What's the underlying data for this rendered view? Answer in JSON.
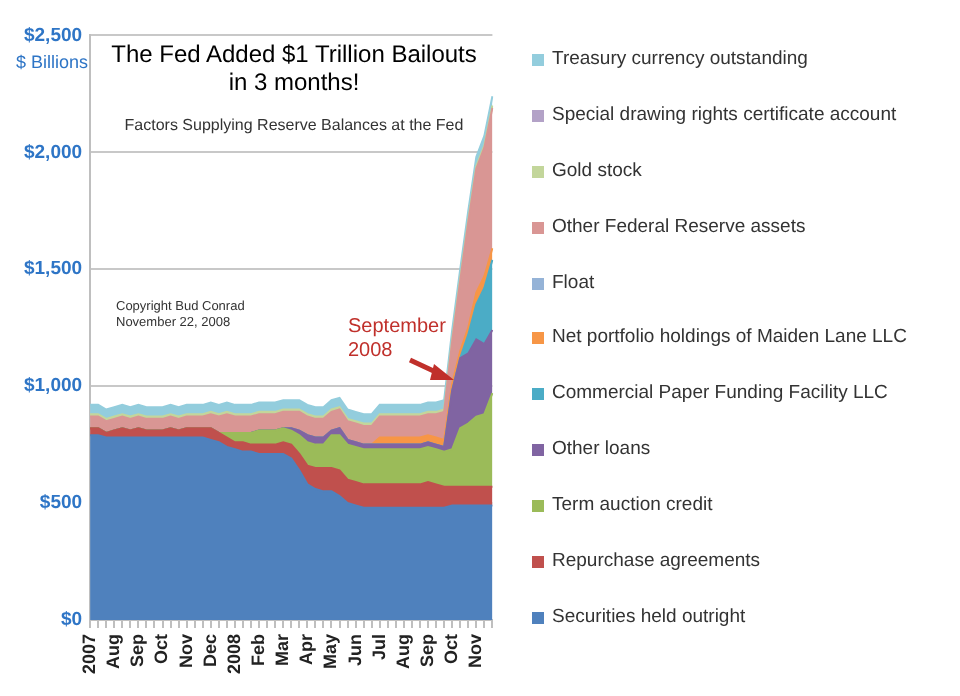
{
  "chart_data": {
    "type": "area",
    "stacked": true,
    "title": "The Fed Added $1 Trillion Bailouts in 3 months!",
    "subtitle": "Factors Supplying Reserve Balances at the Fed",
    "ylabel": "$ Billions",
    "annotations": [
      "Copyright Bud Conrad\nNovember 22, 2008",
      "September 2008"
    ],
    "categories": [
      "2007",
      null,
      null,
      "Aug",
      null,
      null,
      "Sep",
      null,
      null,
      "Oct",
      null,
      null,
      "Nov",
      null,
      null,
      "Dec",
      null,
      null,
      "2008",
      null,
      null,
      "Feb",
      null,
      null,
      "Mar",
      null,
      null,
      "Apr",
      null,
      null,
      "May",
      null,
      null,
      "Jun",
      null,
      null,
      "Jul",
      null,
      null,
      "Aug",
      null,
      null,
      "Sep",
      null,
      null,
      "Oct",
      null,
      null,
      "Nov",
      null,
      null
    ],
    "ylim": [
      0,
      2500
    ],
    "yticks": [
      {
        "value": 0,
        "label": "$0"
      },
      {
        "value": 500,
        "label": "$500"
      },
      {
        "value": 1000,
        "label": "$1,000"
      },
      {
        "value": 1500,
        "label": "$1,500"
      },
      {
        "value": 2000,
        "label": "$2,000"
      },
      {
        "value": 2500,
        "label": "$2,500"
      }
    ],
    "grid": "y",
    "legend": "right",
    "series": [
      {
        "name": "Securities held outright",
        "color": "#4f81bd",
        "values": [
          790,
          790,
          780,
          780,
          780,
          780,
          780,
          780,
          780,
          780,
          780,
          780,
          780,
          780,
          780,
          770,
          760,
          740,
          730,
          720,
          720,
          710,
          710,
          710,
          710,
          690,
          640,
          580,
          560,
          550,
          550,
          530,
          500,
          490,
          480,
          480,
          480,
          480,
          480,
          480,
          480,
          480,
          480,
          480,
          480,
          490,
          490,
          490,
          490,
          490,
          490
        ]
      },
      {
        "name": "Repurchase agreements",
        "color": "#c0504d",
        "values": [
          30,
          30,
          20,
          30,
          40,
          30,
          40,
          30,
          30,
          30,
          40,
          30,
          40,
          40,
          40,
          50,
          40,
          40,
          30,
          40,
          30,
          40,
          40,
          40,
          50,
          60,
          70,
          80,
          90,
          100,
          100,
          110,
          100,
          100,
          100,
          100,
          100,
          100,
          100,
          100,
          100,
          100,
          110,
          100,
          90,
          80,
          80,
          80,
          80,
          80,
          80
        ]
      },
      {
        "name": "Term auction credit",
        "color": "#9bbb59",
        "values": [
          0,
          0,
          0,
          0,
          0,
          0,
          0,
          0,
          0,
          0,
          0,
          0,
          0,
          0,
          0,
          0,
          0,
          20,
          40,
          40,
          50,
          60,
          60,
          60,
          60,
          60,
          80,
          100,
          100,
          100,
          140,
          150,
          150,
          150,
          150,
          150,
          150,
          150,
          150,
          150,
          150,
          150,
          150,
          150,
          150,
          160,
          250,
          270,
          300,
          310,
          400
        ]
      },
      {
        "name": "Other loans",
        "color": "#8064a2",
        "values": [
          0,
          0,
          0,
          0,
          0,
          0,
          0,
          0,
          0,
          0,
          0,
          0,
          0,
          0,
          0,
          0,
          0,
          0,
          0,
          0,
          0,
          0,
          0,
          0,
          0,
          10,
          20,
          30,
          30,
          30,
          20,
          30,
          20,
          20,
          20,
          20,
          20,
          20,
          20,
          20,
          20,
          20,
          20,
          20,
          20,
          250,
          300,
          300,
          330,
          300,
          270
        ]
      },
      {
        "name": "Commercial Paper Funding Facility LLC",
        "color": "#4bacc6",
        "values": [
          0,
          0,
          0,
          0,
          0,
          0,
          0,
          0,
          0,
          0,
          0,
          0,
          0,
          0,
          0,
          0,
          0,
          0,
          0,
          0,
          0,
          0,
          0,
          0,
          0,
          0,
          0,
          0,
          0,
          0,
          0,
          0,
          0,
          0,
          0,
          0,
          0,
          0,
          0,
          0,
          0,
          0,
          0,
          0,
          0,
          0,
          0,
          80,
          150,
          240,
          300
        ]
      },
      {
        "name": "Net portfolio holdings of Maiden Lane LLC",
        "color": "#f79646",
        "values": [
          0,
          0,
          0,
          0,
          0,
          0,
          0,
          0,
          0,
          0,
          0,
          0,
          0,
          0,
          0,
          0,
          0,
          0,
          0,
          0,
          0,
          0,
          0,
          0,
          0,
          0,
          0,
          0,
          0,
          0,
          0,
          0,
          0,
          0,
          0,
          0,
          30,
          30,
          30,
          30,
          30,
          30,
          30,
          30,
          30,
          30,
          30,
          30,
          50,
          50,
          50
        ]
      },
      {
        "name": "Float",
        "color": "#95b3d7",
        "values": [
          null,
          null,
          null,
          null,
          null,
          null,
          null,
          null,
          null,
          null,
          null,
          null,
          null,
          null,
          null,
          null,
          null,
          null,
          null,
          null,
          null,
          null,
          null,
          null,
          null,
          null,
          null,
          null,
          null,
          null,
          null,
          null,
          null,
          null,
          null,
          null,
          null,
          null,
          null,
          null,
          null,
          null,
          null,
          null,
          null,
          null,
          null,
          null,
          null,
          null,
          null
        ]
      },
      {
        "name": "Other Federal Reserve assets",
        "color": "#d99694",
        "values": [
          50,
          50,
          50,
          50,
          50,
          50,
          50,
          50,
          50,
          50,
          50,
          50,
          50,
          50,
          50,
          60,
          70,
          80,
          70,
          70,
          70,
          70,
          70,
          70,
          70,
          70,
          80,
          80,
          80,
          80,
          80,
          80,
          80,
          80,
          80,
          80,
          90,
          90,
          90,
          90,
          90,
          90,
          90,
          100,
          120,
          180,
          300,
          450,
          530,
          550,
          600
        ]
      },
      {
        "name": "Gold stock",
        "color": "#c3d69b",
        "values": [
          10,
          10,
          10,
          10,
          10,
          10,
          10,
          10,
          10,
          10,
          10,
          10,
          10,
          10,
          10,
          10,
          10,
          10,
          10,
          10,
          10,
          10,
          10,
          10,
          10,
          10,
          10,
          10,
          10,
          10,
          10,
          10,
          10,
          10,
          10,
          10,
          10,
          10,
          10,
          10,
          10,
          10,
          10,
          10,
          10,
          10,
          10,
          10,
          10,
          10,
          10
        ]
      },
      {
        "name": "Special drawing rights certificate account",
        "color": "#b3a2c7",
        "values": [
          null,
          null,
          null,
          null,
          null,
          null,
          null,
          null,
          null,
          null,
          null,
          null,
          null,
          null,
          null,
          null,
          null,
          null,
          null,
          null,
          null,
          null,
          null,
          null,
          null,
          null,
          null,
          null,
          null,
          null,
          null,
          null,
          null,
          null,
          null,
          null,
          null,
          null,
          null,
          null,
          null,
          null,
          null,
          null,
          null,
          null,
          null,
          null,
          null,
          null,
          null
        ]
      },
      {
        "name": "Treasury currency outstanding",
        "color": "#93cddd",
        "values": [
          40,
          40,
          40,
          40,
          40,
          40,
          40,
          40,
          40,
          40,
          40,
          40,
          40,
          40,
          40,
          40,
          40,
          40,
          40,
          40,
          40,
          40,
          40,
          40,
          40,
          40,
          40,
          40,
          40,
          40,
          40,
          40,
          40,
          40,
          40,
          40,
          40,
          40,
          40,
          40,
          40,
          40,
          40,
          40,
          40,
          40,
          40,
          40,
          40,
          40,
          40
        ]
      }
    ]
  }
}
